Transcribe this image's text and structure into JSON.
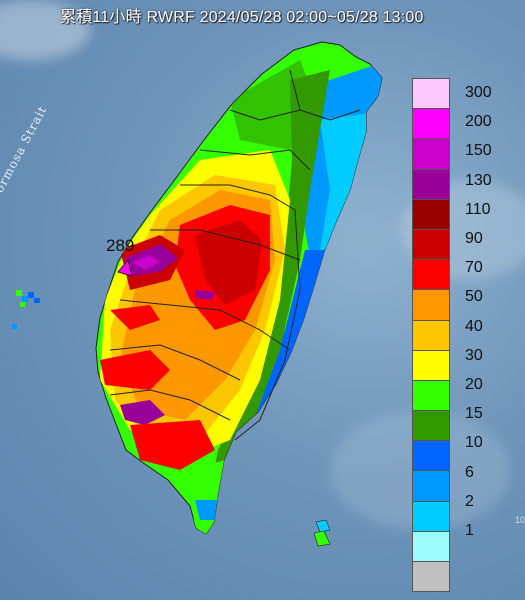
{
  "title": "累積11小時 RWRF 2024/05/28 02:00~05/28 13:00",
  "strait_label": "Formosa Strait",
  "max_value_label": "289",
  "legend": {
    "levels": [
      {
        "label": "300",
        "color": "#fdc8fd"
      },
      {
        "label": "200",
        "color": "#fc00fc"
      },
      {
        "label": "150",
        "color": "#cc00cc"
      },
      {
        "label": "130",
        "color": "#990099"
      },
      {
        "label": "110",
        "color": "#990000"
      },
      {
        "label": "90",
        "color": "#cc0000"
      },
      {
        "label": "70",
        "color": "#fc0000"
      },
      {
        "label": "50",
        "color": "#fc9700"
      },
      {
        "label": "40",
        "color": "#fdc700"
      },
      {
        "label": "30",
        "color": "#fdfd00"
      },
      {
        "label": "20",
        "color": "#33ff00"
      },
      {
        "label": "15",
        "color": "#339900"
      },
      {
        "label": "10",
        "color": "#0066ff"
      },
      {
        "label": "6",
        "color": "#0099ff"
      },
      {
        "label": "2",
        "color": "#00ccff"
      },
      {
        "label": "1",
        "color": "#9dfdfd"
      },
      {
        "label": "",
        "color": "#c0c0c0"
      }
    ]
  },
  "edge_mark": "10"
}
